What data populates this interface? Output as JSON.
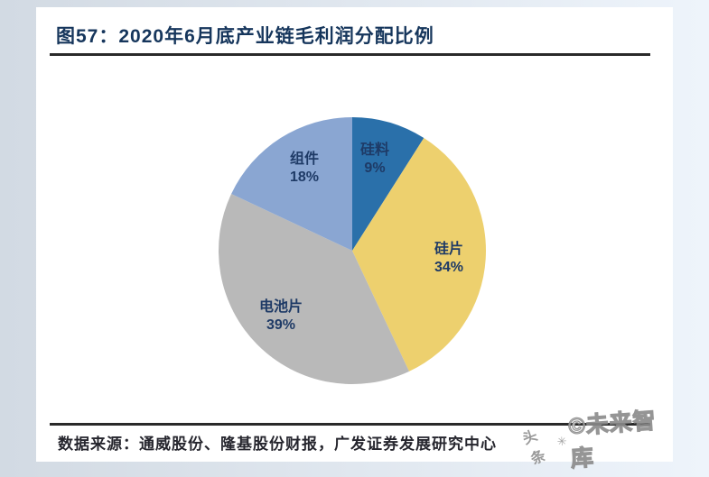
{
  "figure": {
    "title": "图57：2020年6月底产业链毛利润分配比例",
    "source_line": "数据来源：通威股份、隆基股份财报，广发证券发展研究中心"
  },
  "watermark": {
    "brand": "头条",
    "star_icon": "✳",
    "text": "©未来智库"
  },
  "chart_data": {
    "type": "pie",
    "title": "2020年6月底产业链毛利润分配比例",
    "start_angle_deg_from_north": 0,
    "direction": "clockwise",
    "legend": "none",
    "slices": [
      {
        "label": "硅料",
        "value": 9,
        "display": "9%",
        "color": "#2a70aa"
      },
      {
        "label": "硅片",
        "value": 34,
        "display": "34%",
        "color": "#edd06e"
      },
      {
        "label": "电池片",
        "value": 39,
        "display": "39%",
        "color": "#b9b9b9"
      },
      {
        "label": "组件",
        "value": 18,
        "display": "18%",
        "color": "#8aa6d2"
      }
    ]
  },
  "colors": {
    "title_color": "#16365c",
    "label_color": "#1e3a66",
    "source_color": "#26262e",
    "rule_color": "#2a2a2a",
    "card_bg": "#ffffff",
    "page_bg_left": "#d2dae3",
    "page_bg_right": "#eef4fb"
  }
}
